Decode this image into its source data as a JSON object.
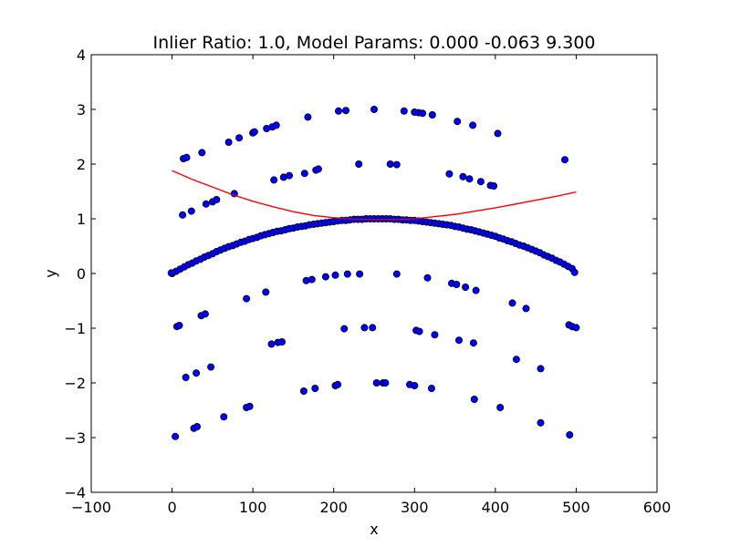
{
  "chart_data": {
    "type": "scatter",
    "title": "Inlier Ratio: 1.0, Model Params: 0.000 -0.063 9.300",
    "xlabel": "x",
    "ylabel": "y",
    "xlim": [
      -100,
      600
    ],
    "ylim": [
      -4,
      4
    ],
    "xticks": [
      -100,
      0,
      100,
      200,
      300,
      400,
      500,
      600
    ],
    "xtick_labels": [
      "−100",
      "0",
      "100",
      "200",
      "300",
      "400",
      "500",
      "600"
    ],
    "yticks": [
      -4,
      -3,
      -2,
      -1,
      0,
      1,
      2,
      3,
      4
    ],
    "ytick_labels": [
      "−4",
      "−3",
      "−2",
      "−1",
      "0",
      "1",
      "2",
      "3",
      "4"
    ],
    "grid": false,
    "colors": {
      "points": "#0000ff",
      "point_edge": "#000000",
      "model_line": "#ff0000"
    },
    "points": [
      [
        0,
        0
      ],
      [
        5,
        0.04
      ],
      [
        10,
        0.08
      ],
      [
        15,
        0.12
      ],
      [
        20,
        0.16
      ],
      [
        25,
        0.19
      ],
      [
        30,
        0.23
      ],
      [
        35,
        0.26
      ],
      [
        40,
        0.3
      ],
      [
        45,
        0.33
      ],
      [
        50,
        0.36
      ],
      [
        55,
        0.4
      ],
      [
        60,
        0.43
      ],
      [
        65,
        0.46
      ],
      [
        70,
        0.49
      ],
      [
        75,
        0.51
      ],
      [
        80,
        0.54
      ],
      [
        85,
        0.57
      ],
      [
        90,
        0.59
      ],
      [
        95,
        0.62
      ],
      [
        100,
        0.64
      ],
      [
        105,
        0.66
      ],
      [
        110,
        0.69
      ],
      [
        115,
        0.71
      ],
      [
        120,
        0.73
      ],
      [
        125,
        0.75
      ],
      [
        130,
        0.77
      ],
      [
        135,
        0.78
      ],
      [
        140,
        0.8
      ],
      [
        145,
        0.82
      ],
      [
        150,
        0.83
      ],
      [
        155,
        0.85
      ],
      [
        160,
        0.86
      ],
      [
        165,
        0.87
      ],
      [
        170,
        0.89
      ],
      [
        175,
        0.9
      ],
      [
        180,
        0.91
      ],
      [
        185,
        0.92
      ],
      [
        190,
        0.93
      ],
      [
        195,
        0.94
      ],
      [
        200,
        0.95
      ],
      [
        205,
        0.96
      ],
      [
        210,
        0.97
      ],
      [
        215,
        0.97
      ],
      [
        220,
        0.98
      ],
      [
        225,
        0.99
      ],
      [
        230,
        0.99
      ],
      [
        235,
        0.99
      ],
      [
        240,
        1.0
      ],
      [
        245,
        1.0
      ],
      [
        250,
        1.0
      ],
      [
        255,
        1.0
      ],
      [
        260,
        1.0
      ],
      [
        265,
        1.0
      ],
      [
        270,
        1.0
      ],
      [
        275,
        0.99
      ],
      [
        280,
        0.99
      ],
      [
        285,
        0.98
      ],
      [
        290,
        0.98
      ],
      [
        295,
        0.97
      ],
      [
        300,
        0.97
      ],
      [
        305,
        0.96
      ],
      [
        310,
        0.95
      ],
      [
        315,
        0.94
      ],
      [
        320,
        0.93
      ],
      [
        325,
        0.92
      ],
      [
        330,
        0.91
      ],
      [
        335,
        0.9
      ],
      [
        340,
        0.89
      ],
      [
        345,
        0.88
      ],
      [
        350,
        0.86
      ],
      [
        355,
        0.85
      ],
      [
        360,
        0.83
      ],
      [
        365,
        0.81
      ],
      [
        370,
        0.8
      ],
      [
        375,
        0.78
      ],
      [
        380,
        0.76
      ],
      [
        385,
        0.74
      ],
      [
        390,
        0.72
      ],
      [
        395,
        0.7
      ],
      [
        400,
        0.68
      ],
      [
        405,
        0.65
      ],
      [
        410,
        0.63
      ],
      [
        415,
        0.6
      ],
      [
        420,
        0.58
      ],
      [
        425,
        0.55
      ],
      [
        430,
        0.52
      ],
      [
        435,
        0.5
      ],
      [
        440,
        0.47
      ],
      [
        445,
        0.44
      ],
      [
        450,
        0.41
      ],
      [
        455,
        0.38
      ],
      [
        460,
        0.34
      ],
      [
        465,
        0.31
      ],
      [
        470,
        0.28
      ],
      [
        475,
        0.24
      ],
      [
        480,
        0.21
      ],
      [
        485,
        0.17
      ],
      [
        490,
        0.13
      ],
      [
        495,
        0.09
      ],
      [
        498,
        0.02
      ],
      [
        14,
        2.1
      ],
      [
        18,
        2.12
      ],
      [
        37,
        2.21
      ],
      [
        70,
        2.4
      ],
      [
        83,
        2.48
      ],
      [
        100,
        2.57
      ],
      [
        102,
        2.59
      ],
      [
        117,
        2.65
      ],
      [
        124,
        2.68
      ],
      [
        129,
        2.71
      ],
      [
        168,
        2.86
      ],
      [
        206,
        2.97
      ],
      [
        215,
        2.98
      ],
      [
        250,
        3.0
      ],
      [
        287,
        2.97
      ],
      [
        300,
        2.95
      ],
      [
        305,
        2.94
      ],
      [
        310,
        2.93
      ],
      [
        322,
        2.9
      ],
      [
        353,
        2.78
      ],
      [
        372,
        2.71
      ],
      [
        403,
        2.56
      ],
      [
        486,
        2.08
      ],
      [
        126,
        1.71
      ],
      [
        138,
        1.76
      ],
      [
        145,
        1.79
      ],
      [
        164,
        1.83
      ],
      [
        178,
        1.89
      ],
      [
        181,
        1.91
      ],
      [
        231,
        2.0
      ],
      [
        270,
        2.0
      ],
      [
        278,
        1.99
      ],
      [
        343,
        1.82
      ],
      [
        360,
        1.77
      ],
      [
        368,
        1.73
      ],
      [
        382,
        1.68
      ],
      [
        394,
        1.61
      ],
      [
        398,
        1.6
      ],
      [
        13,
        1.07
      ],
      [
        24,
        1.14
      ],
      [
        42,
        1.27
      ],
      [
        50,
        1.31
      ],
      [
        55,
        1.35
      ],
      [
        77,
        1.46
      ],
      [
        -1,
        0.01
      ],
      [
        92,
        -0.46
      ],
      [
        116,
        -0.34
      ],
      [
        166,
        -0.13
      ],
      [
        173,
        -0.11
      ],
      [
        190,
        -0.06
      ],
      [
        202,
        -0.03
      ],
      [
        217,
        -0.01
      ],
      [
        232,
        -0.01
      ],
      [
        278,
        -0.01
      ],
      [
        316,
        -0.08
      ],
      [
        346,
        -0.18
      ],
      [
        352,
        -0.2
      ],
      [
        363,
        -0.25
      ],
      [
        376,
        -0.31
      ],
      [
        421,
        -0.54
      ],
      [
        438,
        -0.64
      ],
      [
        6,
        -0.97
      ],
      [
        9,
        -0.95
      ],
      [
        36,
        -0.77
      ],
      [
        41,
        -0.74
      ],
      [
        123,
        -1.29
      ],
      [
        131,
        -1.26
      ],
      [
        136,
        -1.25
      ],
      [
        213,
        -1.01
      ],
      [
        238,
        -0.99
      ],
      [
        248,
        -0.99
      ],
      [
        302,
        -1.04
      ],
      [
        306,
        -1.06
      ],
      [
        325,
        -1.12
      ],
      [
        355,
        -1.22
      ],
      [
        373,
        -1.27
      ],
      [
        426,
        -1.57
      ],
      [
        456,
        -1.74
      ],
      [
        491,
        -0.94
      ],
      [
        495,
        -0.97
      ],
      [
        500,
        -0.99
      ],
      [
        17,
        -1.9
      ],
      [
        30,
        -1.82
      ],
      [
        48,
        -1.71
      ],
      [
        163,
        -2.15
      ],
      [
        177,
        -2.1
      ],
      [
        202,
        -2.05
      ],
      [
        205,
        -2.03
      ],
      [
        253,
        -2.0
      ],
      [
        261,
        -2.0
      ],
      [
        264,
        -2.0
      ],
      [
        294,
        -2.03
      ],
      [
        300,
        -2.05
      ],
      [
        321,
        -2.1
      ],
      [
        374,
        -2.3
      ],
      [
        406,
        -2.45
      ],
      [
        4,
        -2.98
      ],
      [
        27,
        -2.83
      ],
      [
        31,
        -2.8
      ],
      [
        64,
        -2.62
      ],
      [
        92,
        -2.45
      ],
      [
        96,
        -2.43
      ],
      [
        456,
        -2.73
      ],
      [
        492,
        -2.95
      ]
    ],
    "model_line": {
      "x": [
        0,
        25,
        50,
        75,
        100,
        125,
        150,
        175,
        200,
        225,
        250,
        275,
        300,
        325,
        350,
        375,
        400,
        425,
        450,
        475,
        500
      ],
      "y": [
        1.88,
        1.72,
        1.58,
        1.44,
        1.32,
        1.22,
        1.13,
        1.06,
        1.02,
        0.995,
        0.985,
        0.99,
        1.0,
        1.04,
        1.08,
        1.14,
        1.2,
        1.27,
        1.34,
        1.41,
        1.49
      ]
    }
  }
}
